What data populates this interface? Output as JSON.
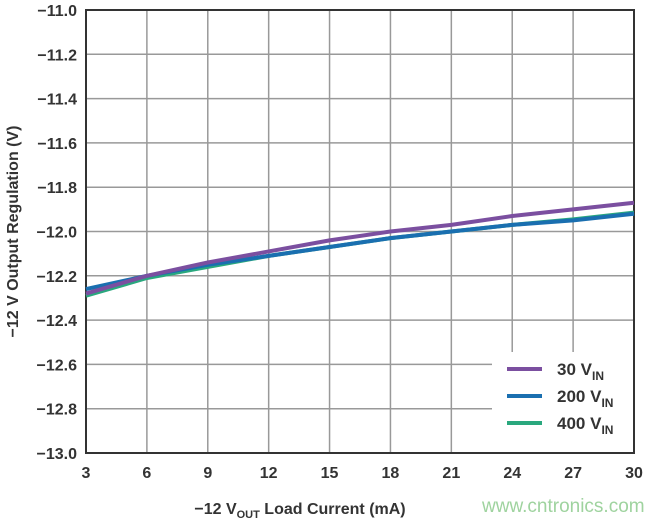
{
  "chart_data": {
    "type": "line",
    "title": "",
    "xlabel": {
      "main": "−12 V",
      "sub": "OUT",
      "rest": " Load Current (mA)"
    },
    "ylabel": "−12 V Output Regulation (V)",
    "xlim": [
      3,
      30
    ],
    "ylim": [
      -13.0,
      -11.0
    ],
    "xticks": [
      3,
      6,
      9,
      12,
      15,
      18,
      21,
      24,
      27,
      30
    ],
    "yticks": [
      -11.0,
      -11.2,
      -11.4,
      -11.6,
      -11.8,
      -12.0,
      -12.2,
      -12.4,
      -12.6,
      -12.8,
      -13.0
    ],
    "ytick_labels": [
      "−11.0",
      "−11.2",
      "−11.4",
      "−11.6",
      "−11.8",
      "−12.0",
      "−12.2",
      "−12.4",
      "−12.6",
      "−12.8",
      "−13.0"
    ],
    "grid": true,
    "legend_placement": "bottom-right",
    "x": [
      3,
      6,
      9,
      12,
      15,
      18,
      21,
      24,
      27,
      30
    ],
    "series": [
      {
        "name": "30 V",
        "sub": "IN",
        "color": "#7b4fa0",
        "values": [
          -12.28,
          -12.2,
          -12.14,
          -12.09,
          -12.04,
          -12.0,
          -11.97,
          -11.93,
          -11.9,
          -11.87
        ]
      },
      {
        "name": "200 V",
        "sub": "IN",
        "color": "#1a6fb0",
        "values": [
          -12.26,
          -12.2,
          -12.15,
          -12.11,
          -12.07,
          -12.03,
          -12.0,
          -11.97,
          -11.95,
          -11.92
        ]
      },
      {
        "name": "400 V",
        "sub": "IN",
        "color": "#2aa87e",
        "values": [
          -12.29,
          -12.21,
          -12.16,
          -12.11,
          -12.07,
          -12.03,
          -12.0,
          -11.97,
          -11.945,
          -11.915
        ]
      }
    ]
  },
  "watermark": "www.cntronics.com"
}
